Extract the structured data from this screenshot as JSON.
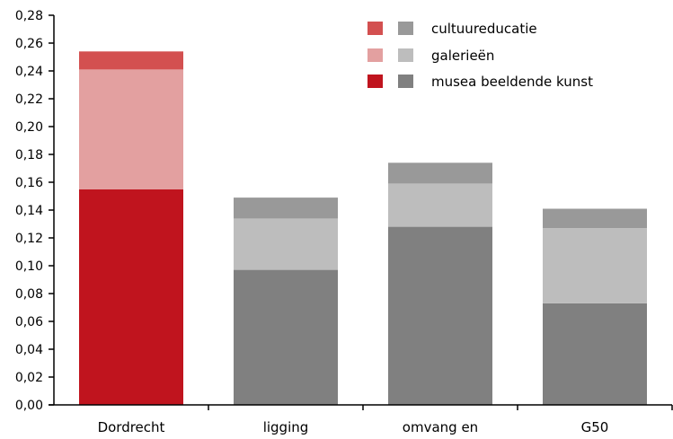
{
  "chart_data": {
    "type": "bar",
    "stacked": true,
    "categories": [
      "Dordrecht",
      "ligging",
      "omvang en",
      "G50"
    ],
    "series": [
      {
        "name": "musea beeldende kunst",
        "values": [
          0.155,
          0.097,
          0.128,
          0.073
        ]
      },
      {
        "name": "galerieën",
        "values": [
          0.086,
          0.037,
          0.031,
          0.054
        ]
      },
      {
        "name": "cultuureducatie",
        "values": [
          0.013,
          0.015,
          0.015,
          0.014
        ]
      }
    ],
    "ylim": [
      0,
      0.28
    ],
    "y_ticks": [
      "0,00",
      "0,02",
      "0,04",
      "0,06",
      "0,08",
      "0,10",
      "0,12",
      "0,14",
      "0,16",
      "0,18",
      "0,20",
      "0,22",
      "0,24",
      "0,26",
      "0,28"
    ],
    "xlabel": "",
    "ylabel": "",
    "title": "",
    "grid": false,
    "legend_position": "top-right",
    "highlight_category": "Dordrecht",
    "colors": {
      "highlight": [
        "#c0141e",
        "#e3a0a0",
        "#d35050"
      ],
      "default": [
        "#808080",
        "#bdbdbd",
        "#999999"
      ]
    }
  }
}
